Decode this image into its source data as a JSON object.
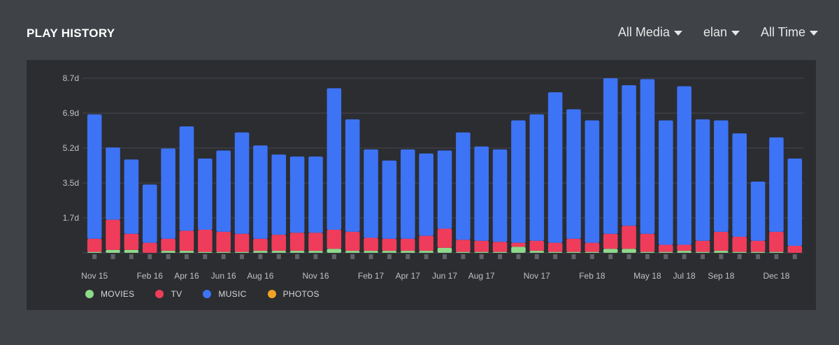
{
  "header": {
    "title": "PLAY HISTORY"
  },
  "filters": [
    {
      "label": "All Media"
    },
    {
      "label": "elan"
    },
    {
      "label": "All Time"
    }
  ],
  "legend": [
    {
      "label": "MOVIES",
      "color": "#8fd98b"
    },
    {
      "label": "TV",
      "color": "#ef3c5a"
    },
    {
      "label": "MUSIC",
      "color": "#3d73f5"
    },
    {
      "label": "PHOTOS",
      "color": "#f0a323"
    }
  ],
  "chart_data": {
    "type": "bar",
    "stacked": true,
    "yticks": [
      "1.7d",
      "3.5d",
      "5.2d",
      "6.9d",
      "8.7d"
    ],
    "ylim": [
      0,
      8.7
    ],
    "grid": true,
    "xtick_labels": [
      {
        "index": 0,
        "label": "Nov 15"
      },
      {
        "index": 3,
        "label": "Feb 16"
      },
      {
        "index": 5,
        "label": "Apr 16"
      },
      {
        "index": 7,
        "label": "Jun 16"
      },
      {
        "index": 9,
        "label": "Aug 16"
      },
      {
        "index": 12,
        "label": "Nov 16"
      },
      {
        "index": 15,
        "label": "Feb 17"
      },
      {
        "index": 17,
        "label": "Apr 17"
      },
      {
        "index": 19,
        "label": "Jun 17"
      },
      {
        "index": 21,
        "label": "Aug 17"
      },
      {
        "index": 24,
        "label": "Nov 17"
      },
      {
        "index": 27,
        "label": "Feb 18"
      },
      {
        "index": 30,
        "label": "May 18"
      },
      {
        "index": 32,
        "label": "Jul 18"
      },
      {
        "index": 34,
        "label": "Sep 18"
      },
      {
        "index": 37,
        "label": "Dec 18"
      }
    ],
    "series": [
      {
        "name": "MOVIES",
        "color": "#8fd98b",
        "values": [
          0.05,
          0.15,
          0.15,
          0.0,
          0.1,
          0.1,
          0.05,
          0.05,
          0.05,
          0.1,
          0.1,
          0.1,
          0.1,
          0.2,
          0.1,
          0.1,
          0.1,
          0.1,
          0.1,
          0.25,
          0.05,
          0.05,
          0.05,
          0.3,
          0.1,
          0.05,
          0.05,
          0.05,
          0.2,
          0.2,
          0.05,
          0.05,
          0.1,
          0.05,
          0.1,
          0.05,
          0.05,
          0.05,
          0.0
        ]
      },
      {
        "name": "TV",
        "color": "#ef3c5a",
        "values": [
          0.65,
          1.5,
          0.8,
          0.5,
          0.6,
          1.0,
          1.1,
          1.0,
          0.9,
          0.6,
          0.8,
          0.9,
          0.9,
          0.95,
          0.95,
          0.65,
          0.6,
          0.6,
          0.75,
          0.95,
          0.6,
          0.55,
          0.5,
          0.2,
          0.5,
          0.45,
          0.65,
          0.45,
          0.75,
          1.15,
          0.9,
          0.35,
          0.3,
          0.55,
          0.95,
          0.75,
          0.55,
          1.0,
          0.35
        ]
      },
      {
        "name": "MUSIC",
        "color": "#3d73f5",
        "values": [
          6.2,
          3.6,
          3.7,
          2.9,
          4.5,
          5.2,
          3.55,
          4.05,
          5.05,
          4.65,
          4.0,
          3.8,
          3.8,
          7.05,
          5.6,
          4.4,
          3.9,
          4.45,
          4.1,
          3.9,
          5.35,
          4.7,
          4.6,
          6.1,
          6.3,
          7.5,
          6.45,
          6.1,
          7.75,
          7.0,
          7.7,
          6.2,
          7.9,
          6.05,
          5.55,
          5.15,
          2.95,
          4.7,
          4.35
        ]
      },
      {
        "name": "PHOTOS",
        "color": "#f0a323",
        "values": [
          0,
          0,
          0,
          0,
          0,
          0,
          0,
          0,
          0,
          0,
          0,
          0,
          0,
          0,
          0,
          0,
          0,
          0,
          0,
          0,
          0,
          0,
          0,
          0,
          0,
          0,
          0,
          0,
          0,
          0,
          0,
          0,
          0,
          0,
          0,
          0,
          0,
          0,
          0
        ]
      }
    ]
  }
}
